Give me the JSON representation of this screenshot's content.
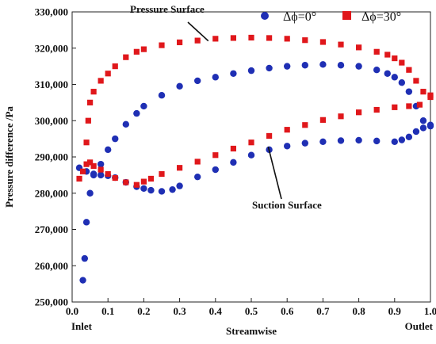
{
  "chart_data": {
    "type": "scatter",
    "title": "",
    "xlabel": "Streamwise",
    "ylabel": "Pressure difference /Pa",
    "xlim": [
      0.0,
      1.0
    ],
    "ylim": [
      250000,
      330000
    ],
    "x_ticks": [
      "0.0",
      "0.1",
      "0.2",
      "0.3",
      "0.4",
      "0.5",
      "0.6",
      "0.7",
      "0.8",
      "0.9",
      "1.0"
    ],
    "y_ticks": [
      "250,000",
      "260,000",
      "270,000",
      "280,000",
      "290,000",
      "300,000",
      "310,000",
      "320,000",
      "330,000"
    ],
    "x_end_labels": {
      "left": "Inlet",
      "right": "Outlet"
    },
    "legend_position": "top-right",
    "annotations": [
      {
        "label": "Pressure Surface",
        "target_x": 0.38,
        "target_y": 322000
      },
      {
        "label": "Suction Surface",
        "target_x": 0.68,
        "target_y": 295000
      }
    ],
    "colors": {
      "series_0": "#1f2fb4",
      "series_30": "#e0171b"
    },
    "series": [
      {
        "name": "Δϕ=0°",
        "marker": "circle",
        "color": "#1f2fb4",
        "pressure_surface": {
          "x": [
            0.03,
            0.035,
            0.04,
            0.05,
            0.06,
            0.08,
            0.1,
            0.12,
            0.15,
            0.18,
            0.2,
            0.25,
            0.3,
            0.35,
            0.4,
            0.45,
            0.5,
            0.55,
            0.6,
            0.65,
            0.7,
            0.75,
            0.8,
            0.85,
            0.88,
            0.9,
            0.92,
            0.94,
            0.96,
            0.98,
            1.0
          ],
          "y": [
            256000,
            262000,
            272000,
            280000,
            285000,
            288000,
            292000,
            295000,
            299000,
            302000,
            304000,
            307000,
            309500,
            311000,
            312000,
            313000,
            313800,
            314500,
            315000,
            315300,
            315500,
            315300,
            315000,
            314000,
            313000,
            312000,
            310500,
            308000,
            304000,
            300000,
            298500
          ]
        },
        "suction_surface": {
          "x": [
            0.02,
            0.04,
            0.06,
            0.08,
            0.1,
            0.12,
            0.15,
            0.18,
            0.2,
            0.22,
            0.25,
            0.28,
            0.3,
            0.35,
            0.4,
            0.45,
            0.5,
            0.55,
            0.6,
            0.65,
            0.7,
            0.75,
            0.8,
            0.85,
            0.9,
            0.92,
            0.94,
            0.96,
            0.98,
            1.0
          ],
          "y": [
            287000,
            286000,
            285300,
            285000,
            284800,
            284300,
            283000,
            281800,
            281300,
            280800,
            280500,
            281000,
            282000,
            284500,
            286500,
            288500,
            290500,
            292000,
            293000,
            293800,
            294200,
            294500,
            294600,
            294400,
            294200,
            294700,
            295500,
            297000,
            298000,
            298800
          ]
        }
      },
      {
        "name": "Δϕ=30°",
        "marker": "square",
        "color": "#e0171b",
        "pressure_surface": {
          "x": [
            0.04,
            0.045,
            0.05,
            0.06,
            0.08,
            0.1,
            0.12,
            0.15,
            0.18,
            0.2,
            0.25,
            0.3,
            0.35,
            0.4,
            0.45,
            0.5,
            0.55,
            0.6,
            0.65,
            0.7,
            0.75,
            0.8,
            0.85,
            0.88,
            0.9,
            0.92,
            0.94,
            0.96,
            0.98,
            1.0
          ],
          "y": [
            294000,
            300000,
            305000,
            308000,
            311000,
            313000,
            315000,
            317500,
            319000,
            319700,
            320800,
            321600,
            322100,
            322600,
            322800,
            322900,
            322800,
            322600,
            322200,
            321700,
            321000,
            320200,
            319000,
            318200,
            317200,
            316000,
            314000,
            311000,
            308000,
            306500
          ]
        },
        "suction_surface": {
          "x": [
            0.02,
            0.03,
            0.04,
            0.05,
            0.06,
            0.08,
            0.1,
            0.12,
            0.15,
            0.18,
            0.2,
            0.22,
            0.25,
            0.3,
            0.35,
            0.4,
            0.45,
            0.5,
            0.55,
            0.6,
            0.65,
            0.7,
            0.75,
            0.8,
            0.85,
            0.9,
            0.94,
            0.97,
            1.0
          ],
          "y": [
            284000,
            286000,
            288000,
            288500,
            287500,
            286500,
            285300,
            284200,
            283000,
            282300,
            283200,
            284000,
            285300,
            287000,
            288700,
            290500,
            292300,
            294000,
            295800,
            297500,
            298800,
            300200,
            301200,
            302300,
            303000,
            303700,
            304000,
            304400,
            307000
          ]
        }
      }
    ]
  }
}
